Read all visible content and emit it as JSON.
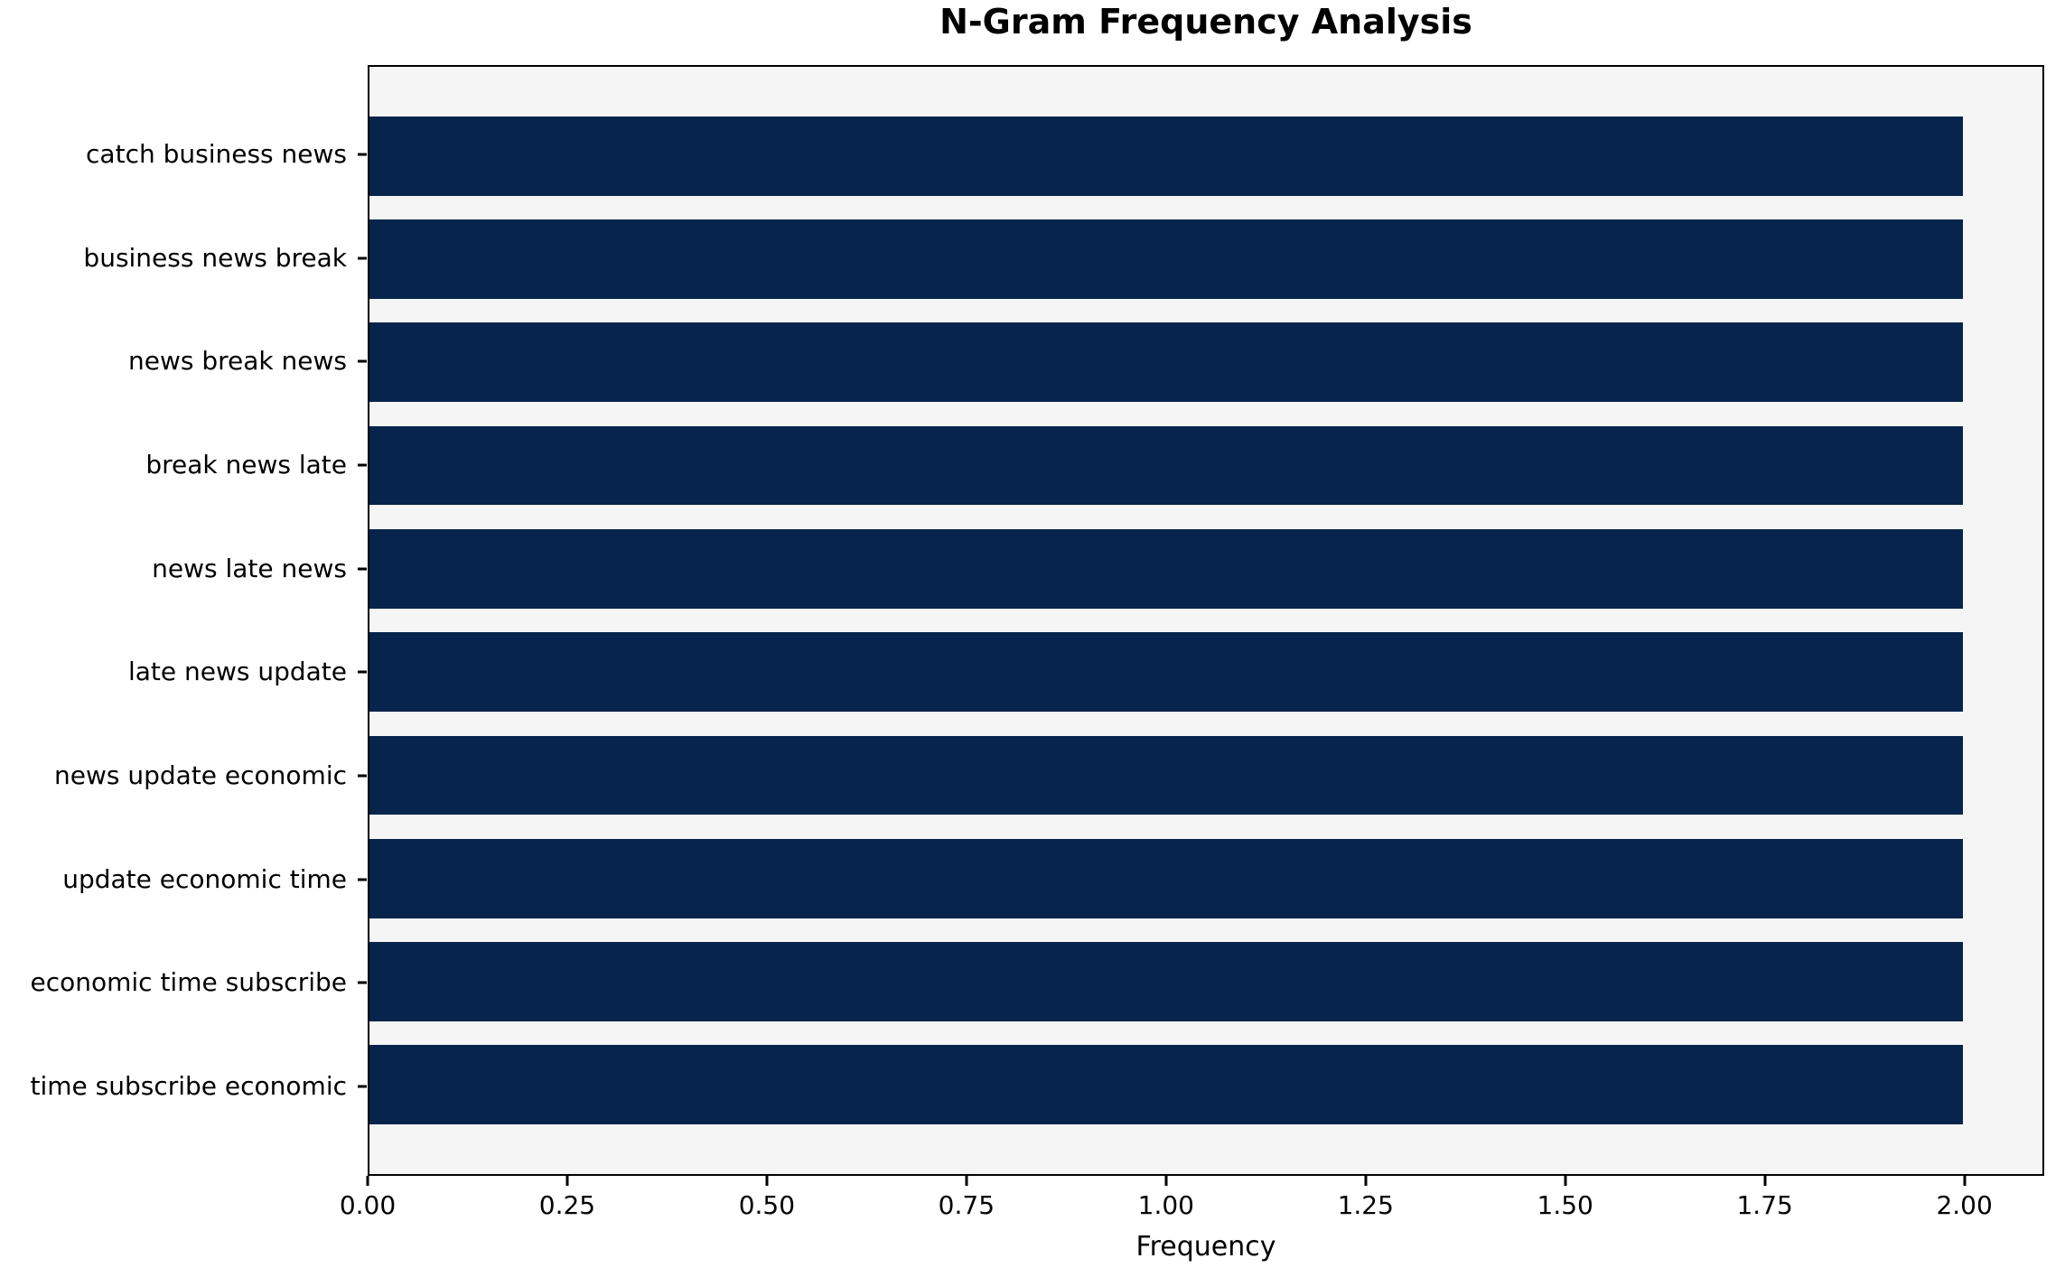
{
  "chart_data": {
    "type": "bar",
    "orientation": "horizontal",
    "title": "N-Gram Frequency Analysis",
    "xlabel": "Frequency",
    "ylabel": "",
    "categories": [
      "catch business news",
      "business news break",
      "news break news",
      "break news late",
      "news late news",
      "late news update",
      "news update economic",
      "update economic time",
      "economic time subscribe",
      "time subscribe economic"
    ],
    "values": [
      2,
      2,
      2,
      2,
      2,
      2,
      2,
      2,
      2,
      2
    ],
    "xlim": [
      0,
      2.1
    ],
    "xticks": [
      0,
      0.25,
      0.5,
      0.75,
      1.0,
      1.25,
      1.5,
      1.75,
      2.0
    ],
    "xtick_labels": [
      "0.00",
      "0.25",
      "0.50",
      "0.75",
      "1.00",
      "1.25",
      "1.50",
      "1.75",
      "2.00"
    ],
    "bar_height_fraction": 0.8,
    "grid": false,
    "legend": "none",
    "colors": {
      "bar": "#07244c",
      "plot_background": "#f5f5f5",
      "figure_background": "#ffffff",
      "axis": "#000000",
      "text": "#000000"
    }
  }
}
